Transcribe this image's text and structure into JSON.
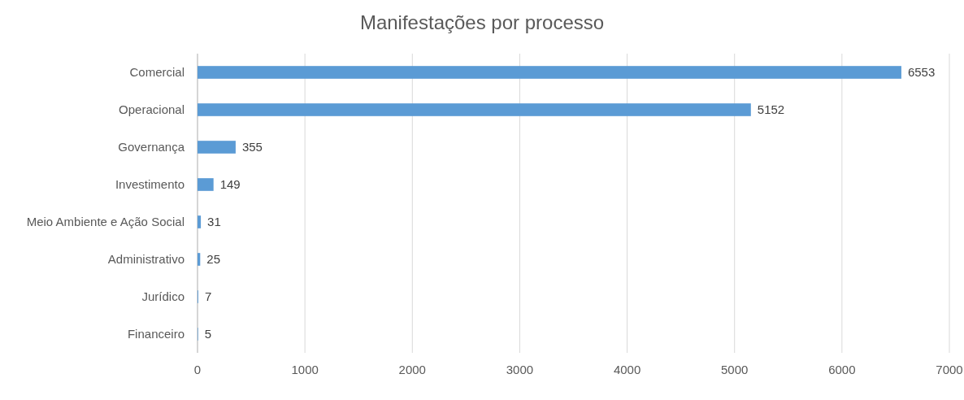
{
  "chart_data": {
    "type": "bar",
    "orientation": "horizontal",
    "title": "Manifestações por processo",
    "categories": [
      "Comercial",
      "Operacional",
      "Governança",
      "Investimento",
      "Meio Ambiente e Ação Social",
      "Administrativo",
      "Jurídico",
      "Financeiro"
    ],
    "values": [
      6553,
      5152,
      355,
      149,
      31,
      25,
      7,
      5
    ],
    "color": "#5b9bd5",
    "xlim": [
      0,
      7000
    ],
    "xticks": [
      0,
      1000,
      2000,
      3000,
      4000,
      5000,
      6000,
      7000
    ],
    "grid": "x",
    "data_labels": true
  }
}
